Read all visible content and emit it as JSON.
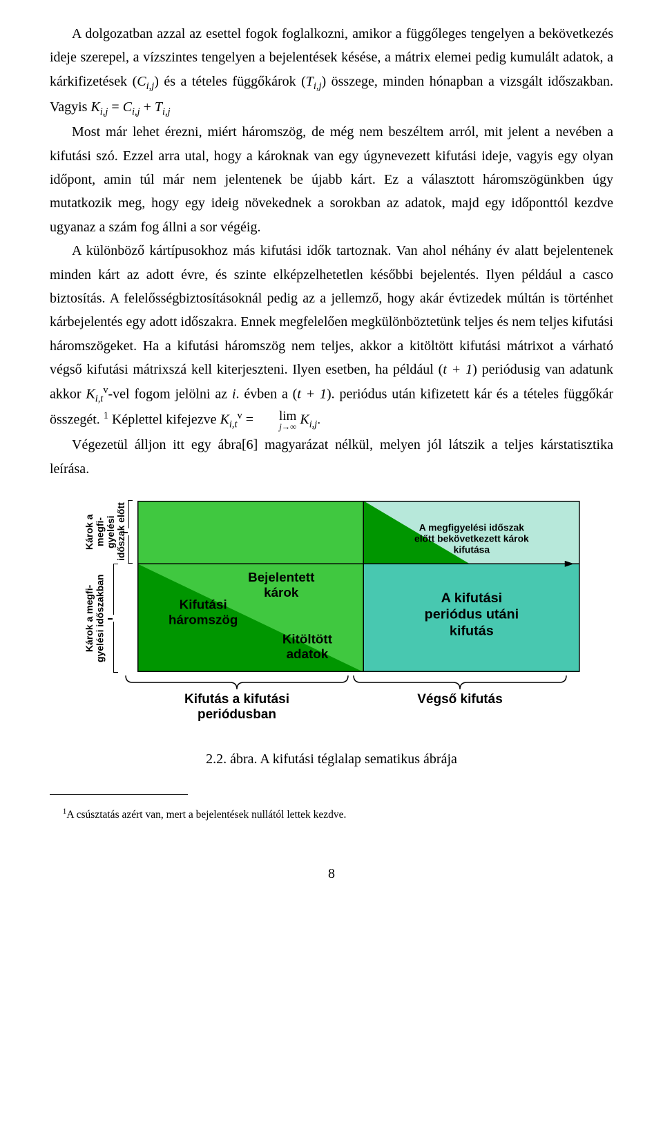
{
  "text": {
    "p1a": "A dolgozatban azzal az esettel fogok foglalkozni, amikor a függőleges tengelyen a bekövetkezés ideje szerepel, a vízszintes tengelyen a bejelentések késése, a mátrix elemei pedig kumulált adatok, a kárkifizetések (",
    "Cij": "C",
    "p1b": ") és a tételes függőkárok (",
    "Tij": "T",
    "p1c": ") összege, minden hónapban a vizsgált időszakban. Vagyis ",
    "Kij": "K",
    "eq_eq": " = ",
    "eq_plus": " + ",
    "p2": "Most már lehet érezni, miért háromszög, de még nem beszéltem arról, mit jelent a nevében a kifutási szó. Ezzel arra utal, hogy a károknak van egy úgynevezett kifutási ideje, vagyis egy olyan időpont, amin túl már nem jelentenek be újabb kárt. Ez a választott háromszögünkben úgy mutatkozik meg, hogy egy ideig növekednek a sorokban az adatok, majd egy időponttól kezdve ugyanaz a szám fog állni a sor végéig.",
    "p3a": "A különböző kártípusokhoz más kifutási idők tartoznak. Van ahol néhány év alatt bejelentenek minden kárt az adott évre, és szinte elképzelhetetlen későbbi bejelentés. Ilyen például a casco biztosítás. A felelősségbiztosításoknál pedig az a jellemző, hogy akár évtizedek múltán is történhet kárbejelentés egy adott időszakra. Ennek megfelelően megkülönböztetünk teljes és nem teljes kifutási háromszögeket. Ha a kifutási háromszög nem teljes, akkor a kitöltött kifutási mátrixot a várható végső kifutási mátrixszá kell kiterjeszteni. Ilyen esetben, ha például (",
    "tplus1a": "t + 1",
    "p3b": ") periódusig van adatunk akkor ",
    "Kv": "K",
    "vsup": "v",
    "p3c": "-vel fogom jelölni az ",
    "ivar": "i",
    "p3d": ". évben a (",
    "tplus1b": "t + 1",
    "p3e": "). periódus után kifizetett kár és a tételes függőkár összegét. ",
    "fnmark": "1",
    "p3f": " Képlettel kifejezve ",
    "eq2_eq": " = ",
    "lim": "lim",
    "limsub": "j→∞",
    "p3g": ".",
    "p4": "Végezetül álljon itt egy ábra[6] magyarázat nélkül, melyen jól látszik a teljes kárstatisztika leírása."
  },
  "diagram": {
    "colors": {
      "green_tri": "#40c840",
      "green_dark": "#009600",
      "teal_light": "#b7e8da",
      "teal_dark": "#48c8b0",
      "border": "#000000",
      "text": "#000000"
    },
    "ylabels": {
      "top": "Károk a megfi-\ngyelési időszak előtt",
      "bottom": "Károk a megfi-\ngyelési időszakban"
    },
    "labels": {
      "bejelentett": "Bejelentett\nkárok",
      "kifutasi": "Kifutási\nháromszög",
      "kitoltott": "Kitöltött\nadatok",
      "elott": "A megfigyelési időszak\nelőtt bekövetkezett károk\nkifutása",
      "utani": "A kifutási\nperiódus utáni\nkifutás"
    },
    "bottom_braces": {
      "left": "Kifutás a kifutási\nperiódusban",
      "right": "Végső kifutás"
    },
    "caption": "2.2. ábra. A kifutási téglalap sematikus ábrája"
  },
  "footnote": {
    "mark": "1",
    "text": "A csúsztatás azért van, mert a bejelentések nullától lettek kezdve."
  },
  "page_number": "8"
}
